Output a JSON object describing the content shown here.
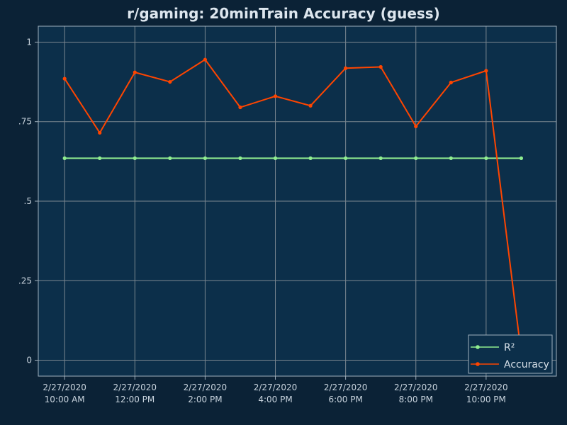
{
  "colors": {
    "page_background": "#0b2236",
    "plot_background": "#0c2f4a",
    "grid": "#7b8790",
    "frame": "#9fb0bd",
    "text": "#c9d4de",
    "r2_series": "#90ee90",
    "accuracy_series": "#ff4500"
  },
  "chart_data": {
    "type": "line",
    "title": "r/gaming: 20minTrain Accuracy (guess)",
    "xlabel": "",
    "ylabel": "",
    "grid": true,
    "legend_position": "bottom-right",
    "y_ticks": [
      {
        "value": 0,
        "label": "0"
      },
      {
        "value": 0.25,
        "label": ".25"
      },
      {
        "value": 0.5,
        "label": ".5"
      },
      {
        "value": 0.75,
        "label": ".75"
      },
      {
        "value": 1,
        "label": "1"
      }
    ],
    "ylim": [
      -0.05,
      1.05
    ],
    "x_ticks": [
      {
        "value": "2020-02-27 10:00",
        "date": "2/27/2020",
        "time": "10:00 AM"
      },
      {
        "value": "2020-02-27 12:00",
        "date": "2/27/2020",
        "time": "12:00 PM"
      },
      {
        "value": "2020-02-27 14:00",
        "date": "2/27/2020",
        "time": "2:00 PM"
      },
      {
        "value": "2020-02-27 16:00",
        "date": "2/27/2020",
        "time": "4:00 PM"
      },
      {
        "value": "2020-02-27 18:00",
        "date": "2/27/2020",
        "time": "6:00 PM"
      },
      {
        "value": "2020-02-27 20:00",
        "date": "2/27/2020",
        "time": "8:00 PM"
      },
      {
        "value": "2020-02-27 22:00",
        "date": "2/27/2020",
        "time": "10:00 PM"
      }
    ],
    "xlim": [
      "2020-02-27 09:15",
      "2020-02-28 00:00"
    ],
    "x": [
      "2020-02-27 10:00",
      "2020-02-27 11:00",
      "2020-02-27 12:00",
      "2020-02-27 13:00",
      "2020-02-27 14:00",
      "2020-02-27 15:00",
      "2020-02-27 16:00",
      "2020-02-27 17:00",
      "2020-02-27 18:00",
      "2020-02-27 19:00",
      "2020-02-27 20:00",
      "2020-02-27 21:00",
      "2020-02-27 22:00",
      "2020-02-27 23:00"
    ],
    "series": [
      {
        "name": "R²",
        "color": "#90ee90",
        "values": [
          0.635,
          0.635,
          0.635,
          0.635,
          0.635,
          0.635,
          0.635,
          0.635,
          0.635,
          0.635,
          0.635,
          0.635,
          0.635,
          0.635
        ]
      },
      {
        "name": "Accuracy",
        "color": "#ff4500",
        "values": [
          0.885,
          0.715,
          0.905,
          0.875,
          0.945,
          0.795,
          0.83,
          0.8,
          0.918,
          0.922,
          0.735,
          0.873,
          0.91,
          0.02
        ]
      }
    ]
  }
}
